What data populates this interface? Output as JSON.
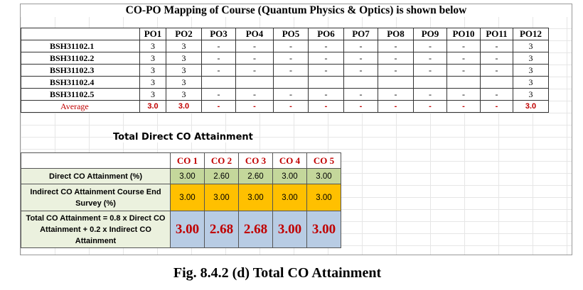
{
  "title": "CO-PO Mapping of Course (Quantum Physics & Optics) is shown below",
  "mapping": {
    "header": [
      "PO1",
      "PO2",
      "PO3",
      "PO4",
      "PO5",
      "PO6",
      "PO7",
      "PO8",
      "PO9",
      "PO10",
      "PO11",
      "PO12"
    ],
    "rows": [
      {
        "label": "BSH31102.1",
        "cells": [
          "3",
          "3",
          "-",
          "-",
          "-",
          "-",
          "-",
          "-",
          "-",
          "-",
          "-",
          "3"
        ]
      },
      {
        "label": "BSH31102.2",
        "cells": [
          "3",
          "3",
          "-",
          "-",
          "-",
          "-",
          "-",
          "-",
          "-",
          "-",
          "-",
          "3"
        ]
      },
      {
        "label": "BSH31102.3",
        "cells": [
          "3",
          "3",
          "-",
          "-",
          "-",
          "-",
          "-",
          "-",
          "-",
          "-",
          "-",
          "3"
        ]
      },
      {
        "label": "BSH31102.4",
        "cells": [
          "3",
          "3",
          null,
          null,
          null,
          null,
          null,
          null,
          null,
          null,
          null,
          "3"
        ]
      },
      {
        "label": "BSH31102.5",
        "cells": [
          "3",
          "3",
          "-",
          "-",
          "-",
          "-",
          "-",
          "-",
          "-",
          "-",
          "-",
          "3"
        ]
      }
    ],
    "average": {
      "label": "Average",
      "cells": [
        "3.0",
        "3.0",
        "-",
        "-",
        "-",
        "-",
        "-",
        "-",
        "-",
        "-",
        "-",
        "3.0"
      ]
    }
  },
  "attainment": {
    "title": "Total Direct CO Attainment",
    "header": [
      "CO 1",
      "CO 2",
      "CO 3",
      "CO 4",
      "CO 5"
    ],
    "rows": [
      {
        "label": "Direct CO Attainment (%)",
        "cells": [
          "3.00",
          "2.60",
          "2.60",
          "3.00",
          "3.00"
        ]
      },
      {
        "label": "Indirect CO Attainment Course End Survey (%)",
        "cells": [
          "3.00",
          "3.00",
          "3.00",
          "3.00",
          "3.00"
        ]
      },
      {
        "label": "Total CO Attainment = 0.8 x Direct CO Attainment + 0.2 x Indirect CO Attainment",
        "cells": [
          "3.00",
          "2.68",
          "2.68",
          "3.00",
          "3.00"
        ]
      }
    ]
  },
  "caption": "Fig.  8.4.2 (d) Total CO Attainment"
}
